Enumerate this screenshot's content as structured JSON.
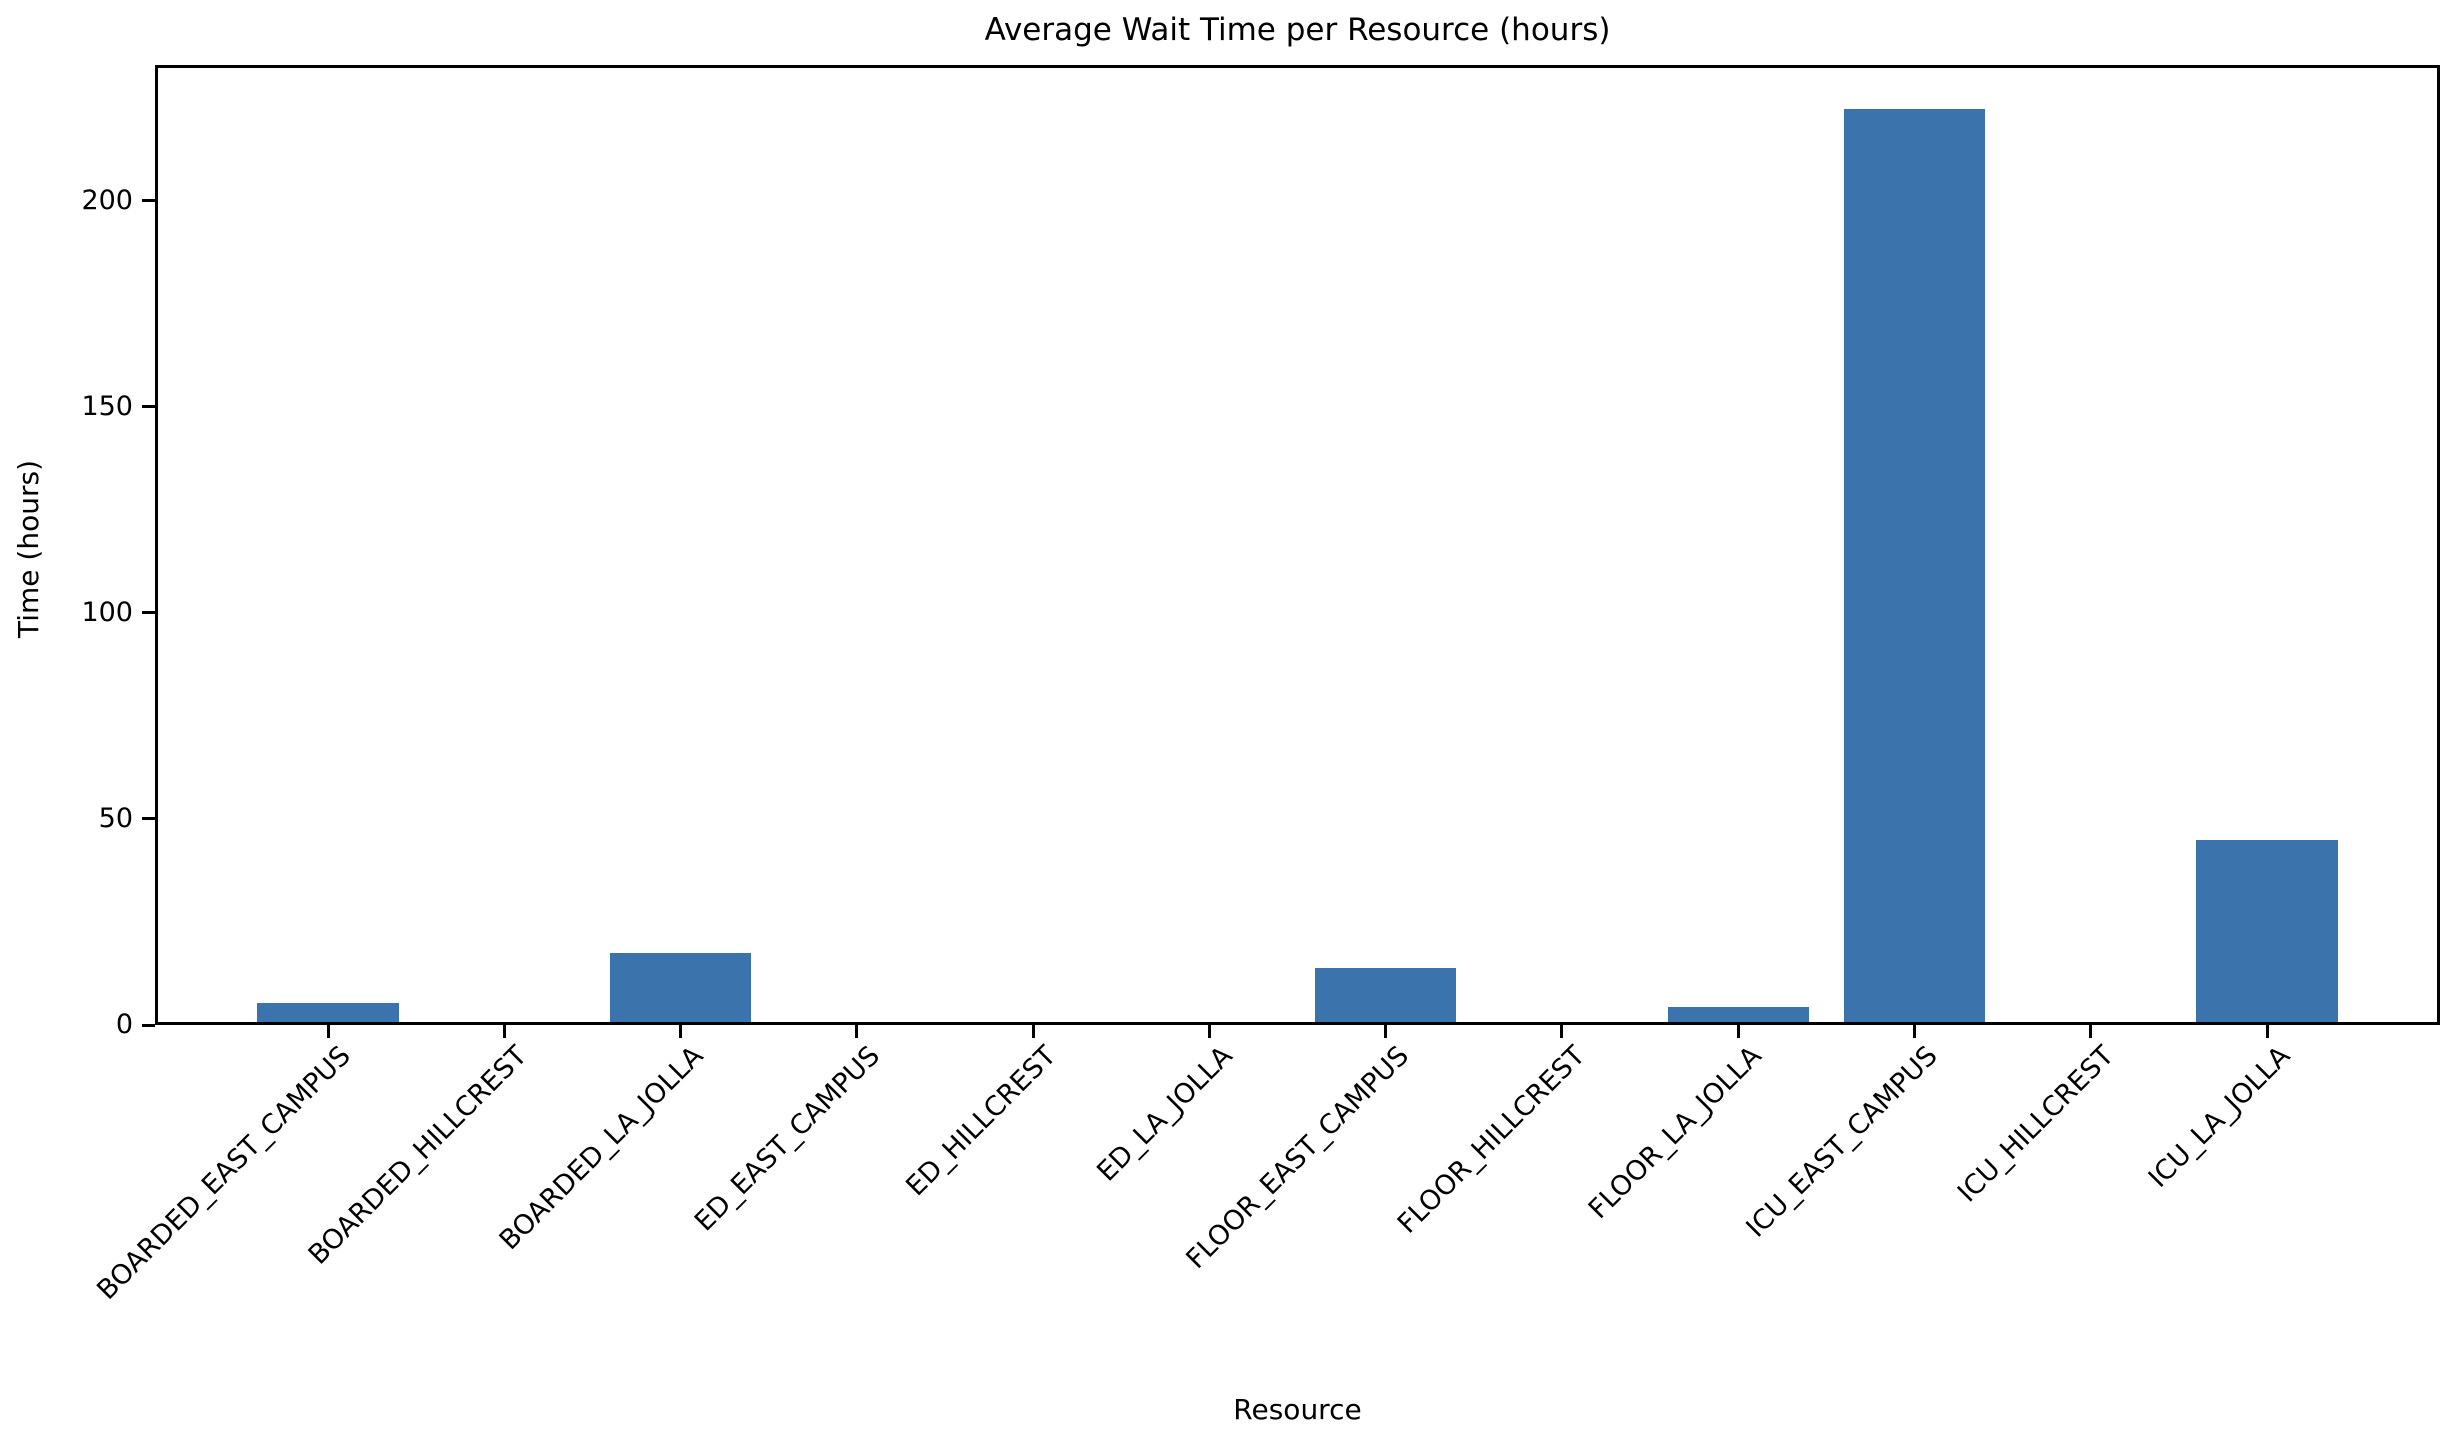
{
  "chart_data": {
    "type": "bar",
    "title": "Average Wait Time per Resource (hours)",
    "xlabel": "Resource",
    "ylabel": "Time (hours)",
    "categories": [
      "BOARDED_EAST_CAMPUS",
      "BOARDED_HILLCREST",
      "BOARDED_LA_JOLLA",
      "ED_EAST_CAMPUS",
      "ED_HILLCREST",
      "ED_LA_JOLLA",
      "FLOOR_EAST_CAMPUS",
      "FLOOR_HILLCREST",
      "FLOOR_LA_JOLLA",
      "ICU_EAST_CAMPUS",
      "ICU_HILLCREST",
      "ICU_LA_JOLLA"
    ],
    "values": [
      4.6,
      0,
      16.8,
      0,
      0,
      0,
      13.1,
      0,
      3.6,
      221.6,
      0,
      44.2
    ],
    "yticks": [
      0,
      50,
      100,
      150,
      200
    ],
    "ylim": [
      0,
      233
    ],
    "xtick_rotation": 45,
    "grid": false,
    "legend": "none",
    "bar_color": "#3b73ad",
    "axis_color": "#000000",
    "background_color": "#ffffff"
  }
}
